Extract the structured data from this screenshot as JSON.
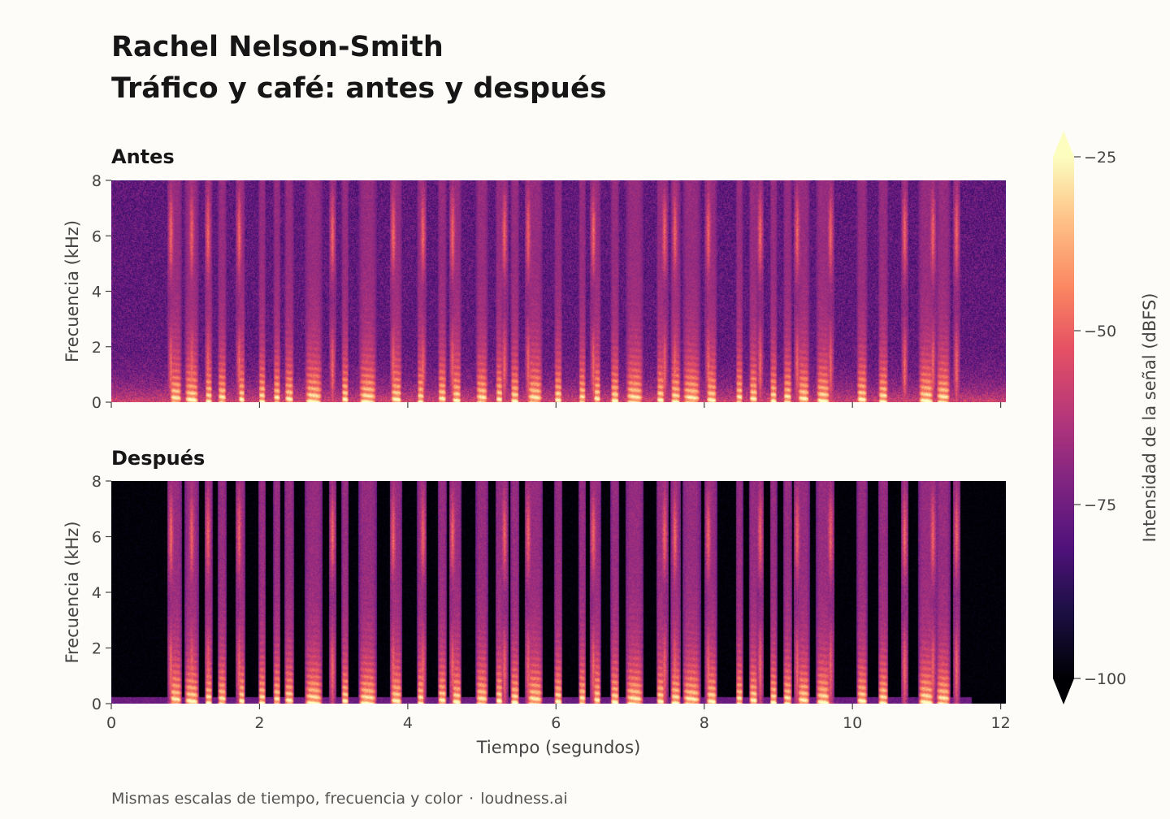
{
  "title": "Rachel Nelson-Smith",
  "subtitle": "Tráfico y café: antes y después",
  "footer": {
    "note": "Mismas escalas de tiempo, frecuencia y color",
    "separator": "·",
    "brand": "loudness.ai"
  },
  "colors": {
    "background": "#fdfcf8",
    "colormap": "magma"
  },
  "chart_data": [
    {
      "type": "heatmap",
      "title": "Antes",
      "ylabel": "Frecuencia (kHz)",
      "xlabel": "",
      "xlim": [
        0,
        12.07
      ],
      "ylim": [
        0,
        8
      ],
      "yticks": [
        0,
        2,
        4,
        6,
        8
      ],
      "xticks": [
        0,
        2,
        4,
        6,
        8,
        10,
        12
      ],
      "xticklabels_shown": false,
      "noise_floor_dbfs": -80,
      "description_values": "spectrogram of speech plus broadband traffic/cafe noise"
    },
    {
      "type": "heatmap",
      "title": "Después",
      "ylabel": "Frecuencia (kHz)",
      "xlabel": "Tiempo (segundos)",
      "xlim": [
        0,
        12.07
      ],
      "ylim": [
        0,
        8
      ],
      "yticks": [
        0,
        2,
        4,
        6,
        8
      ],
      "xticks": [
        0,
        2,
        4,
        6,
        8,
        10,
        12
      ],
      "xticklabels_shown": true,
      "noise_floor_dbfs": -100,
      "description_values": "spectrogram of speech after noise removal"
    }
  ],
  "colorbar": {
    "label": "Intensidad de la señal (dBFS)",
    "min": -100,
    "max": -25,
    "ticks": [
      -25,
      -50,
      -75,
      -100
    ],
    "extend": "both"
  },
  "speech_segments": [
    [
      0.78,
      0.95
    ],
    [
      0.98,
      1.18
    ],
    [
      1.26,
      1.36
    ],
    [
      1.43,
      1.55
    ],
    [
      1.71,
      1.8
    ],
    [
      1.98,
      2.08
    ],
    [
      2.18,
      2.28
    ],
    [
      2.33,
      2.46
    ],
    [
      2.6,
      2.85
    ],
    [
      3.1,
      3.2
    ],
    [
      3.33,
      3.58
    ],
    [
      3.76,
      3.92
    ],
    [
      4.12,
      4.22
    ],
    [
      4.4,
      4.52
    ],
    [
      4.59,
      4.72
    ],
    [
      4.91,
      5.08
    ],
    [
      5.18,
      5.28
    ],
    [
      5.38,
      5.5
    ],
    [
      5.6,
      5.82
    ],
    [
      5.97,
      6.08
    ],
    [
      6.3,
      6.4
    ],
    [
      6.5,
      6.6
    ],
    [
      6.73,
      6.85
    ],
    [
      6.93,
      7.18
    ],
    [
      7.35,
      7.46
    ],
    [
      7.54,
      7.68
    ],
    [
      7.7,
      7.95
    ],
    [
      8.02,
      8.17
    ],
    [
      8.42,
      8.52
    ],
    [
      8.6,
      8.72
    ],
    [
      8.88,
      8.98
    ],
    [
      9.06,
      9.18
    ],
    [
      9.25,
      9.42
    ],
    [
      9.5,
      9.7
    ],
    [
      10.05,
      10.2
    ],
    [
      10.34,
      10.48
    ],
    [
      10.88,
      11.1
    ],
    [
      11.12,
      11.32
    ]
  ],
  "bright_columns": [
    0.8,
    1.08,
    1.3,
    1.72,
    2.98,
    3.8,
    4.2,
    4.6,
    5.3,
    5.62,
    6.5,
    7.46,
    7.6,
    8.05,
    8.75,
    9.25,
    9.7,
    10.7,
    11.08,
    11.4
  ]
}
